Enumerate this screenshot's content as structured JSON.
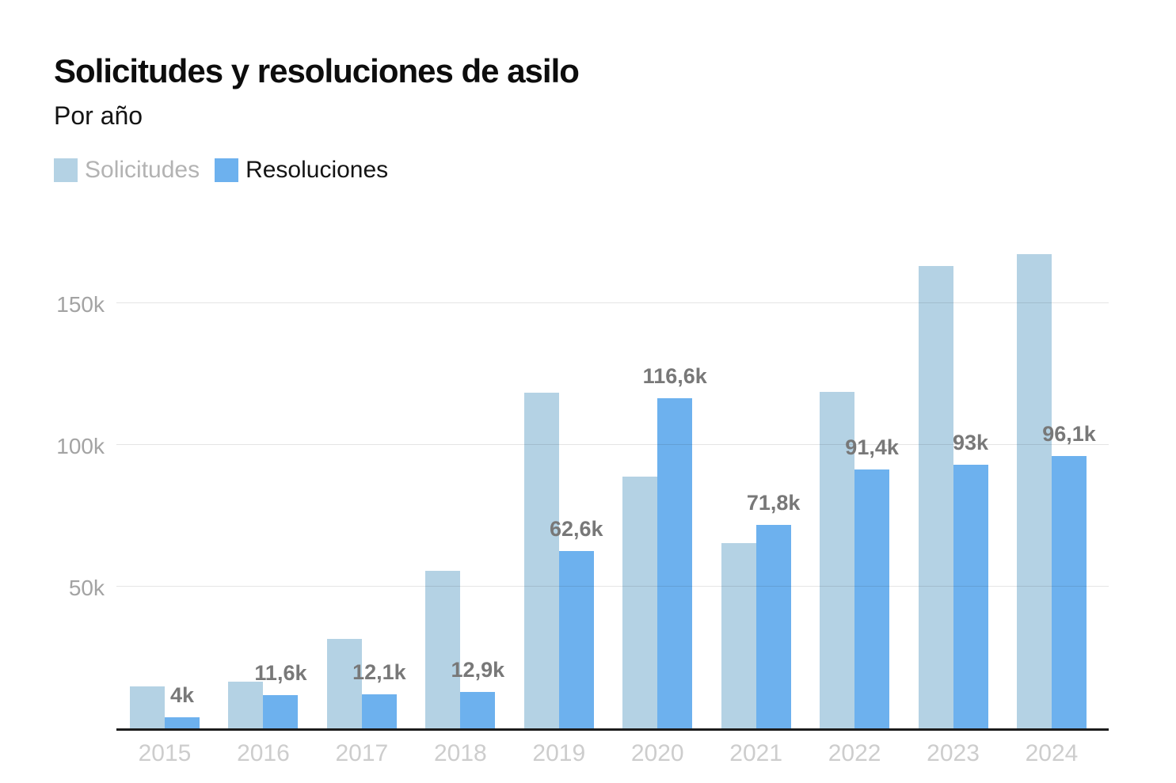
{
  "header": {
    "title": "Solicitudes y resoluciones de asilo",
    "subtitle": "Por año"
  },
  "legend": {
    "items": [
      {
        "label": "Solicitudes",
        "swatch_color": "#b4d2e4",
        "text_color": "#b3b3b3"
      },
      {
        "label": "Resoluciones",
        "swatch_color": "#6db1ee",
        "text_color": "#141414"
      }
    ]
  },
  "colors": {
    "solicitudes_bar": "#b4d2e4",
    "resoluciones_bar": "#6db1ee",
    "axis_line": "#1d1d1d",
    "gridline": "#e4e4e4",
    "y_tick_text": "#a3a3a3",
    "x_tick_text": "#cdcdcd",
    "bar_label_text": "#787878",
    "background": "#ffffff"
  },
  "chart_data": {
    "type": "bar",
    "title": "Solicitudes y resoluciones de asilo",
    "subtitle": "Por año",
    "unit": "thousands of applications/resolutions (k)",
    "categories": [
      "2015",
      "2016",
      "2017",
      "2018",
      "2019",
      "2020",
      "2021",
      "2022",
      "2023",
      "2024"
    ],
    "series": [
      {
        "name": "Solicitudes",
        "color": "#b4d2e4",
        "values_k": [
          14.9,
          16.5,
          31.7,
          55.7,
          118.4,
          88.8,
          65.4,
          118.8,
          163.2,
          167.4
        ],
        "values_estimated_from_gridlines": true,
        "value_labels": [
          "",
          "",
          "",
          "",
          "",
          "",
          "",
          "",
          "",
          ""
        ]
      },
      {
        "name": "Resoluciones",
        "color": "#6db1ee",
        "values_k": [
          4,
          11.6,
          12.1,
          12.9,
          62.6,
          116.6,
          71.8,
          91.4,
          93,
          96.1
        ],
        "values_estimated_from_gridlines": false,
        "value_labels": [
          "4k",
          "11,6k",
          "12,1k",
          "12,9k",
          "62,6k",
          "116,6k",
          "71,8k",
          "91,4k",
          "93k",
          "96,1k"
        ]
      }
    ],
    "ylabel": "",
    "xlabel": "",
    "ylim_k": [
      0,
      179
    ],
    "y_ticks": [
      {
        "value_k": 50,
        "label": "50k"
      },
      {
        "value_k": 100,
        "label": "100k"
      },
      {
        "value_k": 150,
        "label": "150k"
      }
    ],
    "grid": "horizontal",
    "legend_position": "top-left",
    "bar_labels_position": "above Resoluciones bars"
  }
}
